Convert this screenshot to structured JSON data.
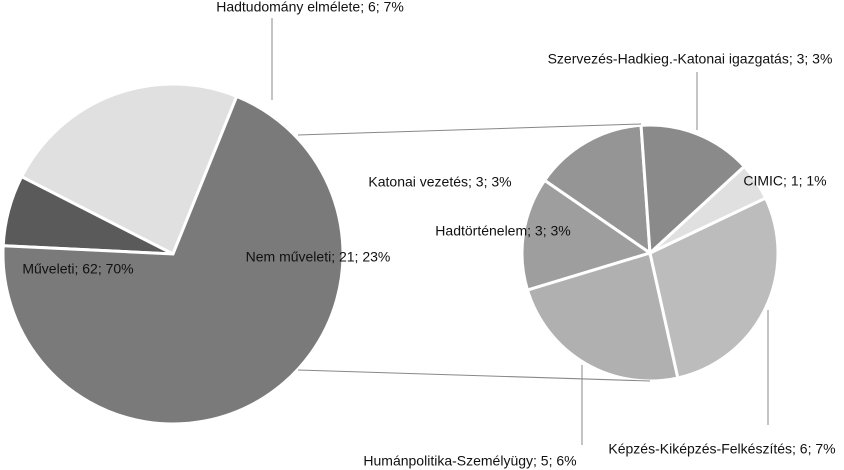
{
  "chart_data": [
    {
      "type": "pie",
      "categories": [
        "Műveleti",
        "Hadtudomány elmélete",
        "Nem műveleti"
      ],
      "values": [
        62,
        6,
        21
      ],
      "value_labels": [
        "Műveleti; 62; 70%",
        "Hadtudomány elmélete; 6; 7%",
        "Nem műveleti; 21; 23%"
      ],
      "colors": [
        "#7a7a7a",
        "#5a5a5a",
        "#e0e0e0"
      ]
    },
    {
      "type": "pie",
      "categories": [
        "Szervezés-Hadkieg.-Katonai igazgatás",
        "CIMIC",
        "Képzés-Kiképzés-Felkészítés",
        "Humánpolitika-Személyügy",
        "Hadtörténelem",
        "Katonai vezetés"
      ],
      "values": [
        3,
        1,
        6,
        5,
        3,
        3
      ],
      "value_labels": [
        "Szervezés-Hadkieg.-Katonai igazgatás; 3; 3%",
        "CIMIC; 1; 1%",
        "Képzés-Kiképzés-Felkészítés; 6; 7%",
        "Humánpolitika-Személyügy; 5; 6%",
        "Hadtörténelem; 3; 3%",
        "Katonai vezetés; 3; 3%"
      ],
      "colors": [
        "#8a8a8a",
        "#e0e0e0",
        "#bcbcbc",
        "#b0b0b0",
        "#9e9e9e",
        "#959595"
      ]
    }
  ]
}
